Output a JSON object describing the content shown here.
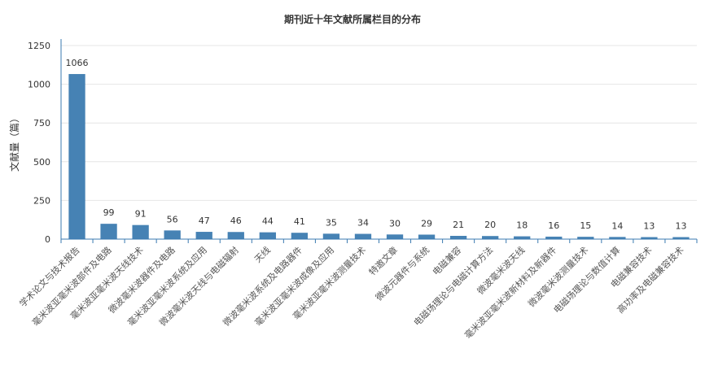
{
  "chart_data": {
    "type": "bar",
    "title": "期刊近十年文献所属栏目的分布",
    "xlabel": "",
    "ylabel": "文献量（篇）",
    "ylim": [
      0,
      1250
    ],
    "yticks": [
      0,
      250,
      500,
      750,
      1000,
      1250
    ],
    "grid": true,
    "bar_color": "#4682b4",
    "categories": [
      "学术论文与技术报告",
      "毫米波亚毫米波部件及电路",
      "毫米波亚毫米波天线技术",
      "微波毫米波器件及电路",
      "毫米波亚毫米波系统及应用",
      "微波毫米波天线与电磁辐射",
      "天线",
      "微波毫米波系统及电路器件",
      "毫米波亚毫米波成像及应用",
      "毫米波亚毫米波测量技术",
      "特邀文章",
      "微波元器件与系统",
      "电磁兼容",
      "电磁场理论与电磁计算方法",
      "微波毫米波天线",
      "毫米波亚毫米波新材料及新器件",
      "微波毫米波测量技术",
      "电磁场理论与数值计算",
      "电磁兼容技术",
      "高功率及电磁兼容技术"
    ],
    "values": [
      1066,
      99,
      91,
      56,
      47,
      46,
      44,
      41,
      35,
      34,
      30,
      29,
      21,
      20,
      18,
      16,
      15,
      14,
      13,
      13
    ]
  }
}
